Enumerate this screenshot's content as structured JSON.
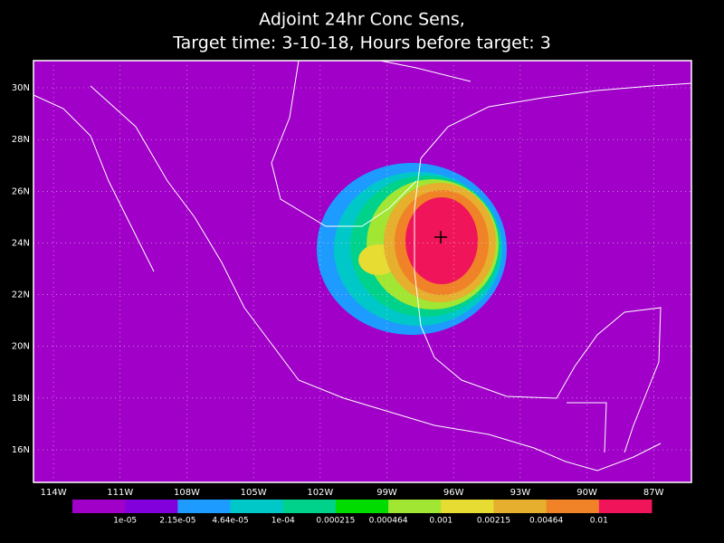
{
  "title": [
    "Adjoint 24hr Conc Sens,",
    "Target time: 3-10-18, Hours before target: 3"
  ],
  "map": {
    "xlim": [
      -114.9,
      -85.3
    ],
    "ylim": [
      14.74,
      31.05
    ],
    "xticks": [
      {
        "value": -114,
        "label": "114W"
      },
      {
        "value": -111,
        "label": "111W"
      },
      {
        "value": -108,
        "label": "108W"
      },
      {
        "value": -105,
        "label": "105W"
      },
      {
        "value": -102,
        "label": "102W"
      },
      {
        "value": -99,
        "label": "99W"
      },
      {
        "value": -96,
        "label": "96W"
      },
      {
        "value": -93,
        "label": "93W"
      },
      {
        "value": -90,
        "label": "90W"
      },
      {
        "value": -87,
        "label": "87W"
      }
    ],
    "yticks": [
      {
        "value": 16,
        "label": "16N"
      },
      {
        "value": 18,
        "label": "18N"
      },
      {
        "value": 20,
        "label": "20N"
      },
      {
        "value": 22,
        "label": "22N"
      },
      {
        "value": 24,
        "label": "24N"
      },
      {
        "value": 26,
        "label": "26N"
      },
      {
        "value": 28,
        "label": "28N"
      },
      {
        "value": 30,
        "label": "30N"
      }
    ],
    "grid": true
  },
  "colorbar": {
    "colors": [
      "#a000c8",
      "#8200dc",
      "#1e9bff",
      "#00c8c8",
      "#00d28c",
      "#00dc00",
      "#a0e632",
      "#e6dc32",
      "#e6af2d",
      "#f08228",
      "#f0145a"
    ],
    "labels": [
      "1e-05",
      "2.15e-05",
      "4.64e-05",
      "1e-04",
      "0.000215",
      "0.000464",
      "0.001",
      "0.00215",
      "0.00464",
      "0.01"
    ]
  }
}
